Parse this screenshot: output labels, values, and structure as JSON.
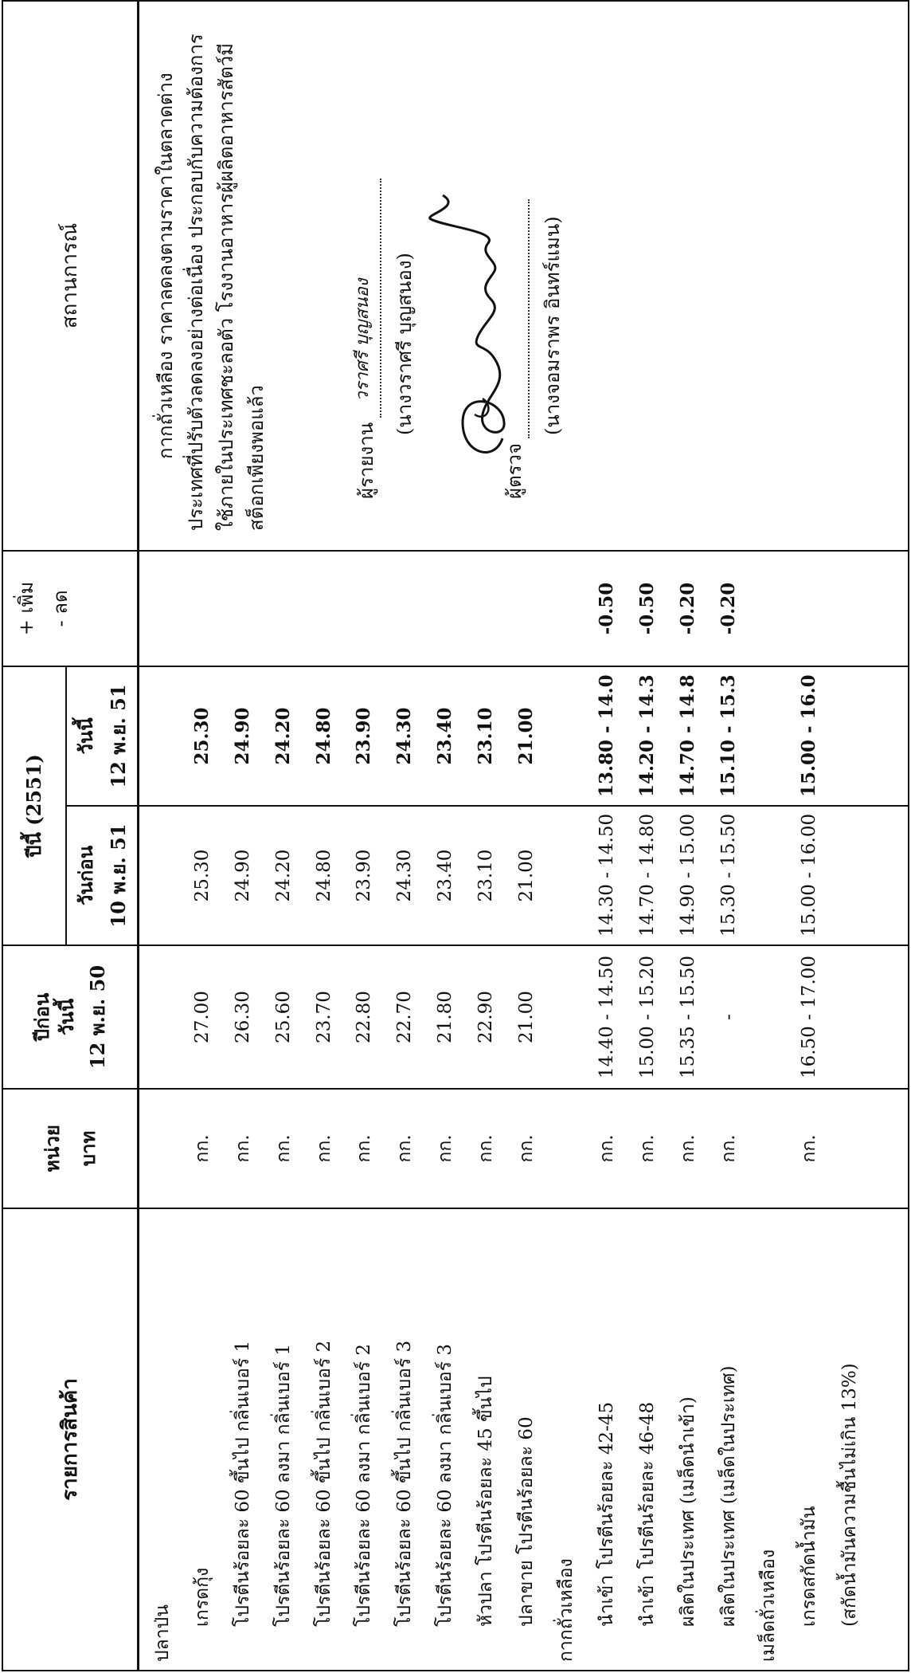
{
  "headers": {
    "item": "รายการสินค้า",
    "unit": "หน่วย",
    "unit_sub": "บาท",
    "last_year": "ปีก่อน",
    "last_year_today": "วันนี้",
    "last_year_date": "12 พ.ย. 50",
    "this_year": "ปีนี้ (2551)",
    "prev_day": "วันก่อน",
    "prev_day_date": "10 พ.ย. 51",
    "today": "วันนี้",
    "today_date": "12 พ.ย. 51",
    "change_plus": "+ เพิ่ม",
    "change_minus": "- ลด",
    "situation": "สถานการณ์"
  },
  "rows": [
    {
      "item": "ปลาป่น",
      "level": "group",
      "unit": "",
      "last_year": "",
      "prev": "",
      "today": "",
      "change": ""
    },
    {
      "item": "เกรดกุ้ง",
      "level": "sub",
      "unit": "กก.",
      "last_year": "27.00",
      "prev": "25.30",
      "today": "25.30",
      "change": ""
    },
    {
      "item": "โปรตีนร้อยละ 60 ขึ้นไป  กลิ่นเบอร์ 1",
      "level": "sub",
      "unit": "กก.",
      "last_year": "26.30",
      "prev": "24.90",
      "today": "24.90",
      "change": ""
    },
    {
      "item": "โปรตีนร้อยละ 60 ลงมา  กลิ่นเบอร์ 1",
      "level": "sub",
      "unit": "กก.",
      "last_year": "25.60",
      "prev": "24.20",
      "today": "24.20",
      "change": ""
    },
    {
      "item": "โปรตีนร้อยละ 60 ขึ้นไป  กลิ่นเบอร์ 2",
      "level": "sub",
      "unit": "กก.",
      "last_year": "23.70",
      "prev": "24.80",
      "today": "24.80",
      "change": ""
    },
    {
      "item": "โปรตีนร้อยละ 60 ลงมา  กลิ่นเบอร์ 2",
      "level": "sub",
      "unit": "กก.",
      "last_year": "22.80",
      "prev": "23.90",
      "today": "23.90",
      "change": ""
    },
    {
      "item": "โปรตีนร้อยละ 60 ขึ้นไป  กลิ่นเบอร์ 3",
      "level": "sub",
      "unit": "กก.",
      "last_year": "22.70",
      "prev": "24.30",
      "today": "24.30",
      "change": ""
    },
    {
      "item": "โปรตีนร้อยละ 60 ลงมา  กลิ่นเบอร์ 3",
      "level": "sub",
      "unit": "กก.",
      "last_year": "21.80",
      "prev": "23.40",
      "today": "23.40",
      "change": ""
    },
    {
      "item": "หัวปลา  โปรตีนร้อยละ 45 ขึ้นไป",
      "level": "sub",
      "unit": "กก.",
      "last_year": "22.90",
      "prev": "23.10",
      "today": "23.10",
      "change": ""
    },
    {
      "item": "ปลาขาย  โปรตีนร้อยละ 60",
      "level": "sub",
      "unit": "กก.",
      "last_year": "21.00",
      "prev": "21.00",
      "today": "21.00",
      "change": ""
    },
    {
      "item": "กากถั่วเหลือง",
      "level": "group",
      "unit": "",
      "last_year": "",
      "prev": "",
      "today": "",
      "change": ""
    },
    {
      "item": "นำเข้า   โปรตีนร้อยละ 42-45",
      "level": "sub",
      "unit": "กก.",
      "last_year": "14.40 - 14.50",
      "prev": "14.30 - 14.50",
      "today": "13.80 - 14.00",
      "change": "-0.50"
    },
    {
      "item": "นำเข้า   โปรตีนร้อยละ 46-48",
      "level": "sub",
      "unit": "กก.",
      "last_year": "15.00 - 15.20",
      "prev": "14.70 - 14.80",
      "today": "14.20 - 14.30",
      "change": "-0.50"
    },
    {
      "item": "ผลิตในประเทศ (เมล็ดนำเข้า)",
      "level": "sub",
      "unit": "กก.",
      "last_year": "15.35 - 15.50",
      "prev": "14.90 - 15.00",
      "today": "14.70 - 14.80",
      "change": "-0.20"
    },
    {
      "item": "ผลิตในประเทศ (เมล็ดในประเทศ)",
      "level": "sub",
      "unit": "กก.",
      "last_year": "-",
      "prev": "15.30 - 15.50",
      "today": "15.10 - 15.30",
      "change": "-0.20"
    },
    {
      "item": "เมล็ดถั่วเหลือง",
      "level": "group",
      "unit": "",
      "last_year": "",
      "prev": "",
      "today": "",
      "change": ""
    },
    {
      "item": "เกรดสกัดน้ำมัน",
      "level": "sub2",
      "unit": "กก.",
      "last_year": "16.50 - 17.00",
      "prev": "15.00 - 16.00",
      "today": "15.00 - 16.00",
      "change": ""
    },
    {
      "item": "(สกัดน้ำมันความชื้นไม่เกิน 13%)",
      "level": "sub2",
      "unit": "",
      "last_year": "",
      "prev": "",
      "today": "",
      "change": ""
    }
  ],
  "situation": {
    "text": "กากถั่วเหลือง  ราคาลดลงตามราคาในตลาดต่างประเทศที่ปรับตัวลดลงอย่างต่อเนื่อง   ประกอบกับความต้องการใช้ภายในประเทศชะลอตัว  โรงงานอาหารผู้ผลิตอาหารสัตว์มีสต็อกเพียงพอแล้ว",
    "reporter_label": "ผู้รายงาน",
    "reporter_handwritten": "วราศรี   บุญสนอง",
    "reporter_name": "(นางวราศรี  บุญสนอง)",
    "checker_label": "ผู้ตรวจ",
    "checker_name": "(นางจอมราพร  อินทร์แมน)"
  }
}
